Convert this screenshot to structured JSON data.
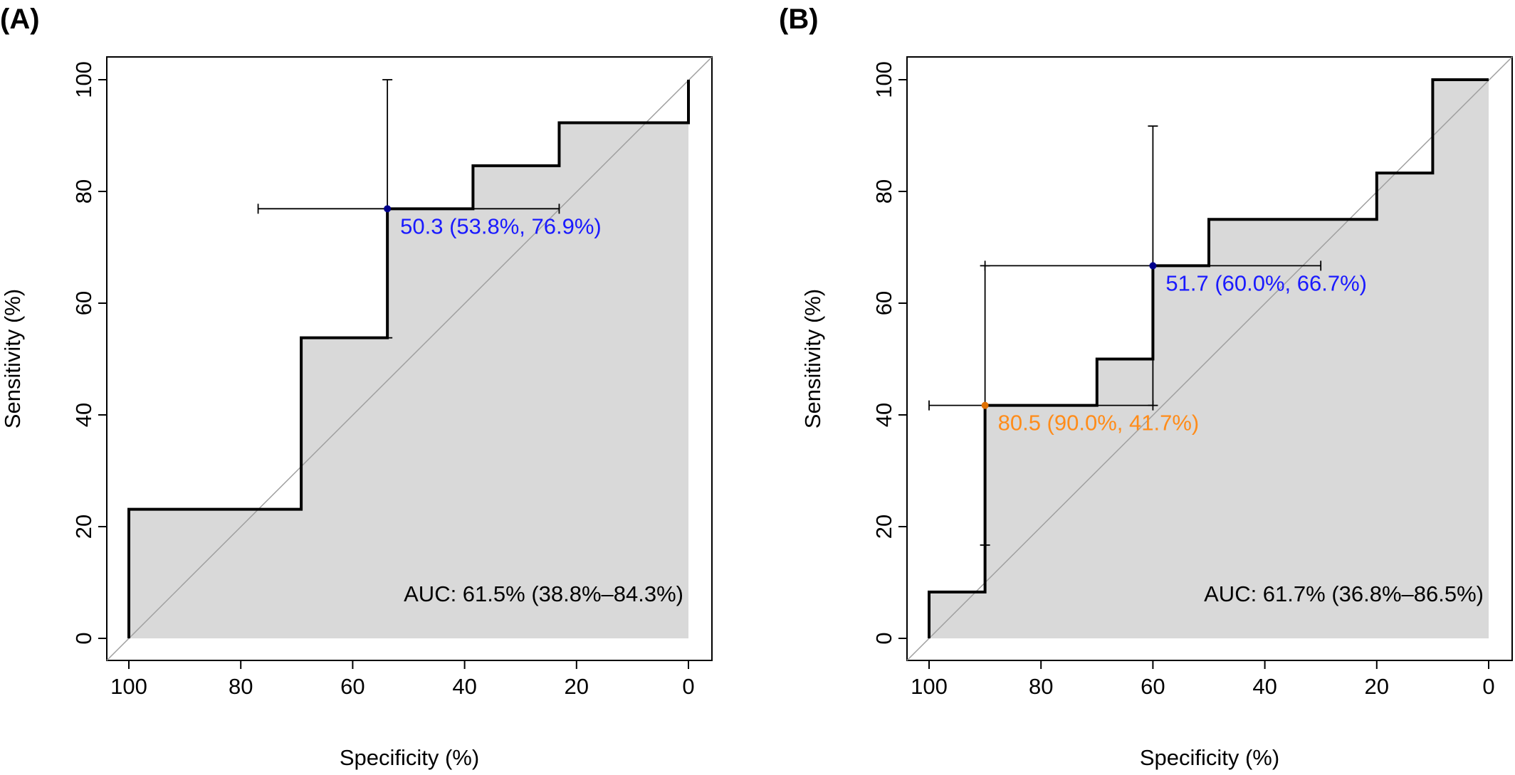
{
  "chart_data": [
    {
      "panel_label": "(A)",
      "type": "line",
      "xlabel": "Specificity (%)",
      "ylabel": "Sensitivity (%)",
      "xlim": [
        100,
        0
      ],
      "ylim": [
        0,
        100
      ],
      "x_reversed": true,
      "x_ticks": [
        100,
        80,
        60,
        40,
        20,
        0
      ],
      "y_ticks": [
        0,
        20,
        40,
        60,
        80,
        100
      ],
      "x_tick_labels": [
        "100",
        "80",
        "60",
        "40",
        "20",
        "0"
      ],
      "y_tick_labels": [
        "0",
        "20",
        "40",
        "60",
        "80",
        "100"
      ],
      "grid": false,
      "legend": "none",
      "area_fill": true,
      "diagonal_reference": true,
      "curve": {
        "specificity": [
          100,
          100,
          69.2,
          69.2,
          53.8,
          53.8,
          38.5,
          38.5,
          23.1,
          23.1,
          0,
          0
        ],
        "sensitivity": [
          0,
          23.1,
          23.1,
          53.8,
          53.8,
          76.9,
          76.9,
          84.6,
          84.6,
          92.3,
          92.3,
          100
        ]
      },
      "thresholds": [
        {
          "label": "50.3 (53.8%, 76.9%)",
          "specificity": 53.8,
          "sensitivity": 76.9,
          "spec_ci": [
            76.9,
            23.1
          ],
          "sens_ci": [
            53.8,
            100
          ],
          "color": "#1a1aff",
          "point_color": "#00008b"
        }
      ],
      "auc_text": "AUC: 61.5% (38.8%–84.3%)",
      "colors": {
        "fill": "#d9d9d9",
        "curve": "#000000",
        "diagonal": "#a0a0a0"
      }
    },
    {
      "panel_label": "(B)",
      "type": "line",
      "xlabel": "Specificity (%)",
      "ylabel": "Sensitivity (%)",
      "xlim": [
        100,
        0
      ],
      "ylim": [
        0,
        100
      ],
      "x_reversed": true,
      "x_ticks": [
        100,
        80,
        60,
        40,
        20,
        0
      ],
      "y_ticks": [
        0,
        20,
        40,
        60,
        80,
        100
      ],
      "x_tick_labels": [
        "100",
        "80",
        "60",
        "40",
        "20",
        "0"
      ],
      "y_tick_labels": [
        "0",
        "20",
        "40",
        "60",
        "80",
        "100"
      ],
      "grid": false,
      "legend": "none",
      "area_fill": true,
      "diagonal_reference": true,
      "curve": {
        "specificity": [
          100,
          100,
          90,
          90,
          70,
          70,
          60,
          60,
          50,
          50,
          20,
          20,
          10,
          10,
          0
        ],
        "sensitivity": [
          0,
          8.3,
          8.3,
          41.7,
          41.7,
          50,
          50,
          66.7,
          66.7,
          75,
          75,
          83.3,
          83.3,
          100,
          100
        ]
      },
      "thresholds": [
        {
          "label": "51.7 (60.0%, 66.7%)",
          "specificity": 60.0,
          "sensitivity": 66.7,
          "spec_ci": [
            90,
            30
          ],
          "sens_ci": [
            41.7,
            91.7
          ],
          "color": "#1a1aff",
          "point_color": "#00008b"
        },
        {
          "label": "80.5 (90.0%, 41.7%)",
          "specificity": 90.0,
          "sensitivity": 41.7,
          "spec_ci": [
            100,
            60
          ],
          "sens_ci": [
            16.7,
            66.7
          ],
          "color": "#ff8c1a",
          "point_color": "#e07000"
        }
      ],
      "auc_text": "AUC: 61.7% (36.8%–86.5%)",
      "colors": {
        "fill": "#d9d9d9",
        "curve": "#000000",
        "diagonal": "#a0a0a0"
      }
    }
  ]
}
